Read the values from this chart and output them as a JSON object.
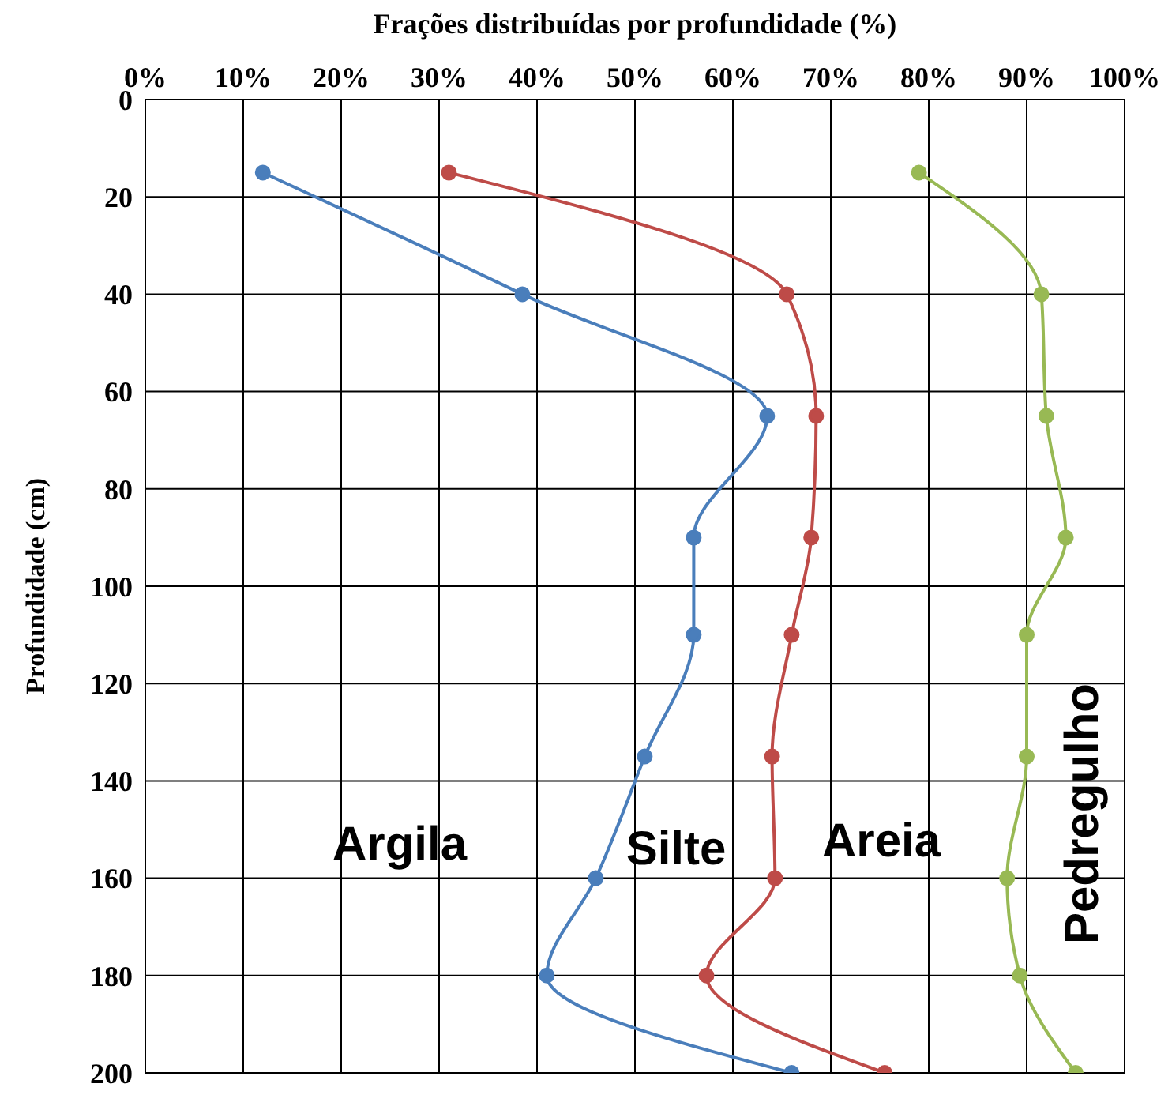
{
  "chart_data": {
    "type": "line",
    "xlabel": "Frações distribuídas  por profundidade  (%)",
    "ylabel": "Profundidade  (cm)",
    "series": [
      {
        "color": "#4a7ebb",
        "x": [
          12,
          38.5,
          63.5,
          56,
          56,
          51,
          46,
          41,
          66
        ],
        "values": [
          15,
          40,
          65,
          90,
          110,
          135,
          160,
          180,
          200
        ]
      },
      {
        "color": "#be4b48",
        "x": [
          31,
          65.5,
          68.5,
          68,
          66,
          64,
          64.3,
          57.3,
          75.5
        ],
        "values": [
          15,
          40,
          65,
          90,
          110,
          135,
          160,
          180,
          200
        ]
      },
      {
        "color": "#98b954",
        "x": [
          79,
          91.5,
          92,
          94,
          90,
          90,
          88,
          89.3,
          95
        ],
        "values": [
          15,
          40,
          65,
          90,
          110,
          135,
          160,
          180,
          200
        ]
      }
    ],
    "xlim": [
      0,
      100
    ],
    "xticks": [
      {
        "value": 0,
        "label": "0%"
      },
      {
        "value": 10,
        "label": "10%"
      },
      {
        "value": 20,
        "label": "20%"
      },
      {
        "value": 30,
        "label": "30%"
      },
      {
        "value": 40,
        "label": "40%"
      },
      {
        "value": 50,
        "label": "50%"
      },
      {
        "value": 60,
        "label": "60%"
      },
      {
        "value": 70,
        "label": "70%"
      },
      {
        "value": 80,
        "label": "80%"
      },
      {
        "value": 90,
        "label": "90%"
      },
      {
        "value": 100,
        "label": "100%"
      }
    ],
    "ylim": [
      200,
      0
    ],
    "yticks": [
      0,
      20,
      40,
      60,
      80,
      100,
      120,
      140,
      160,
      180,
      200
    ],
    "grid": true,
    "marker": "circle",
    "line_style": "solid",
    "annotations": [
      "Argila",
      "Silte",
      "Areia",
      "Pedregulho"
    ]
  }
}
